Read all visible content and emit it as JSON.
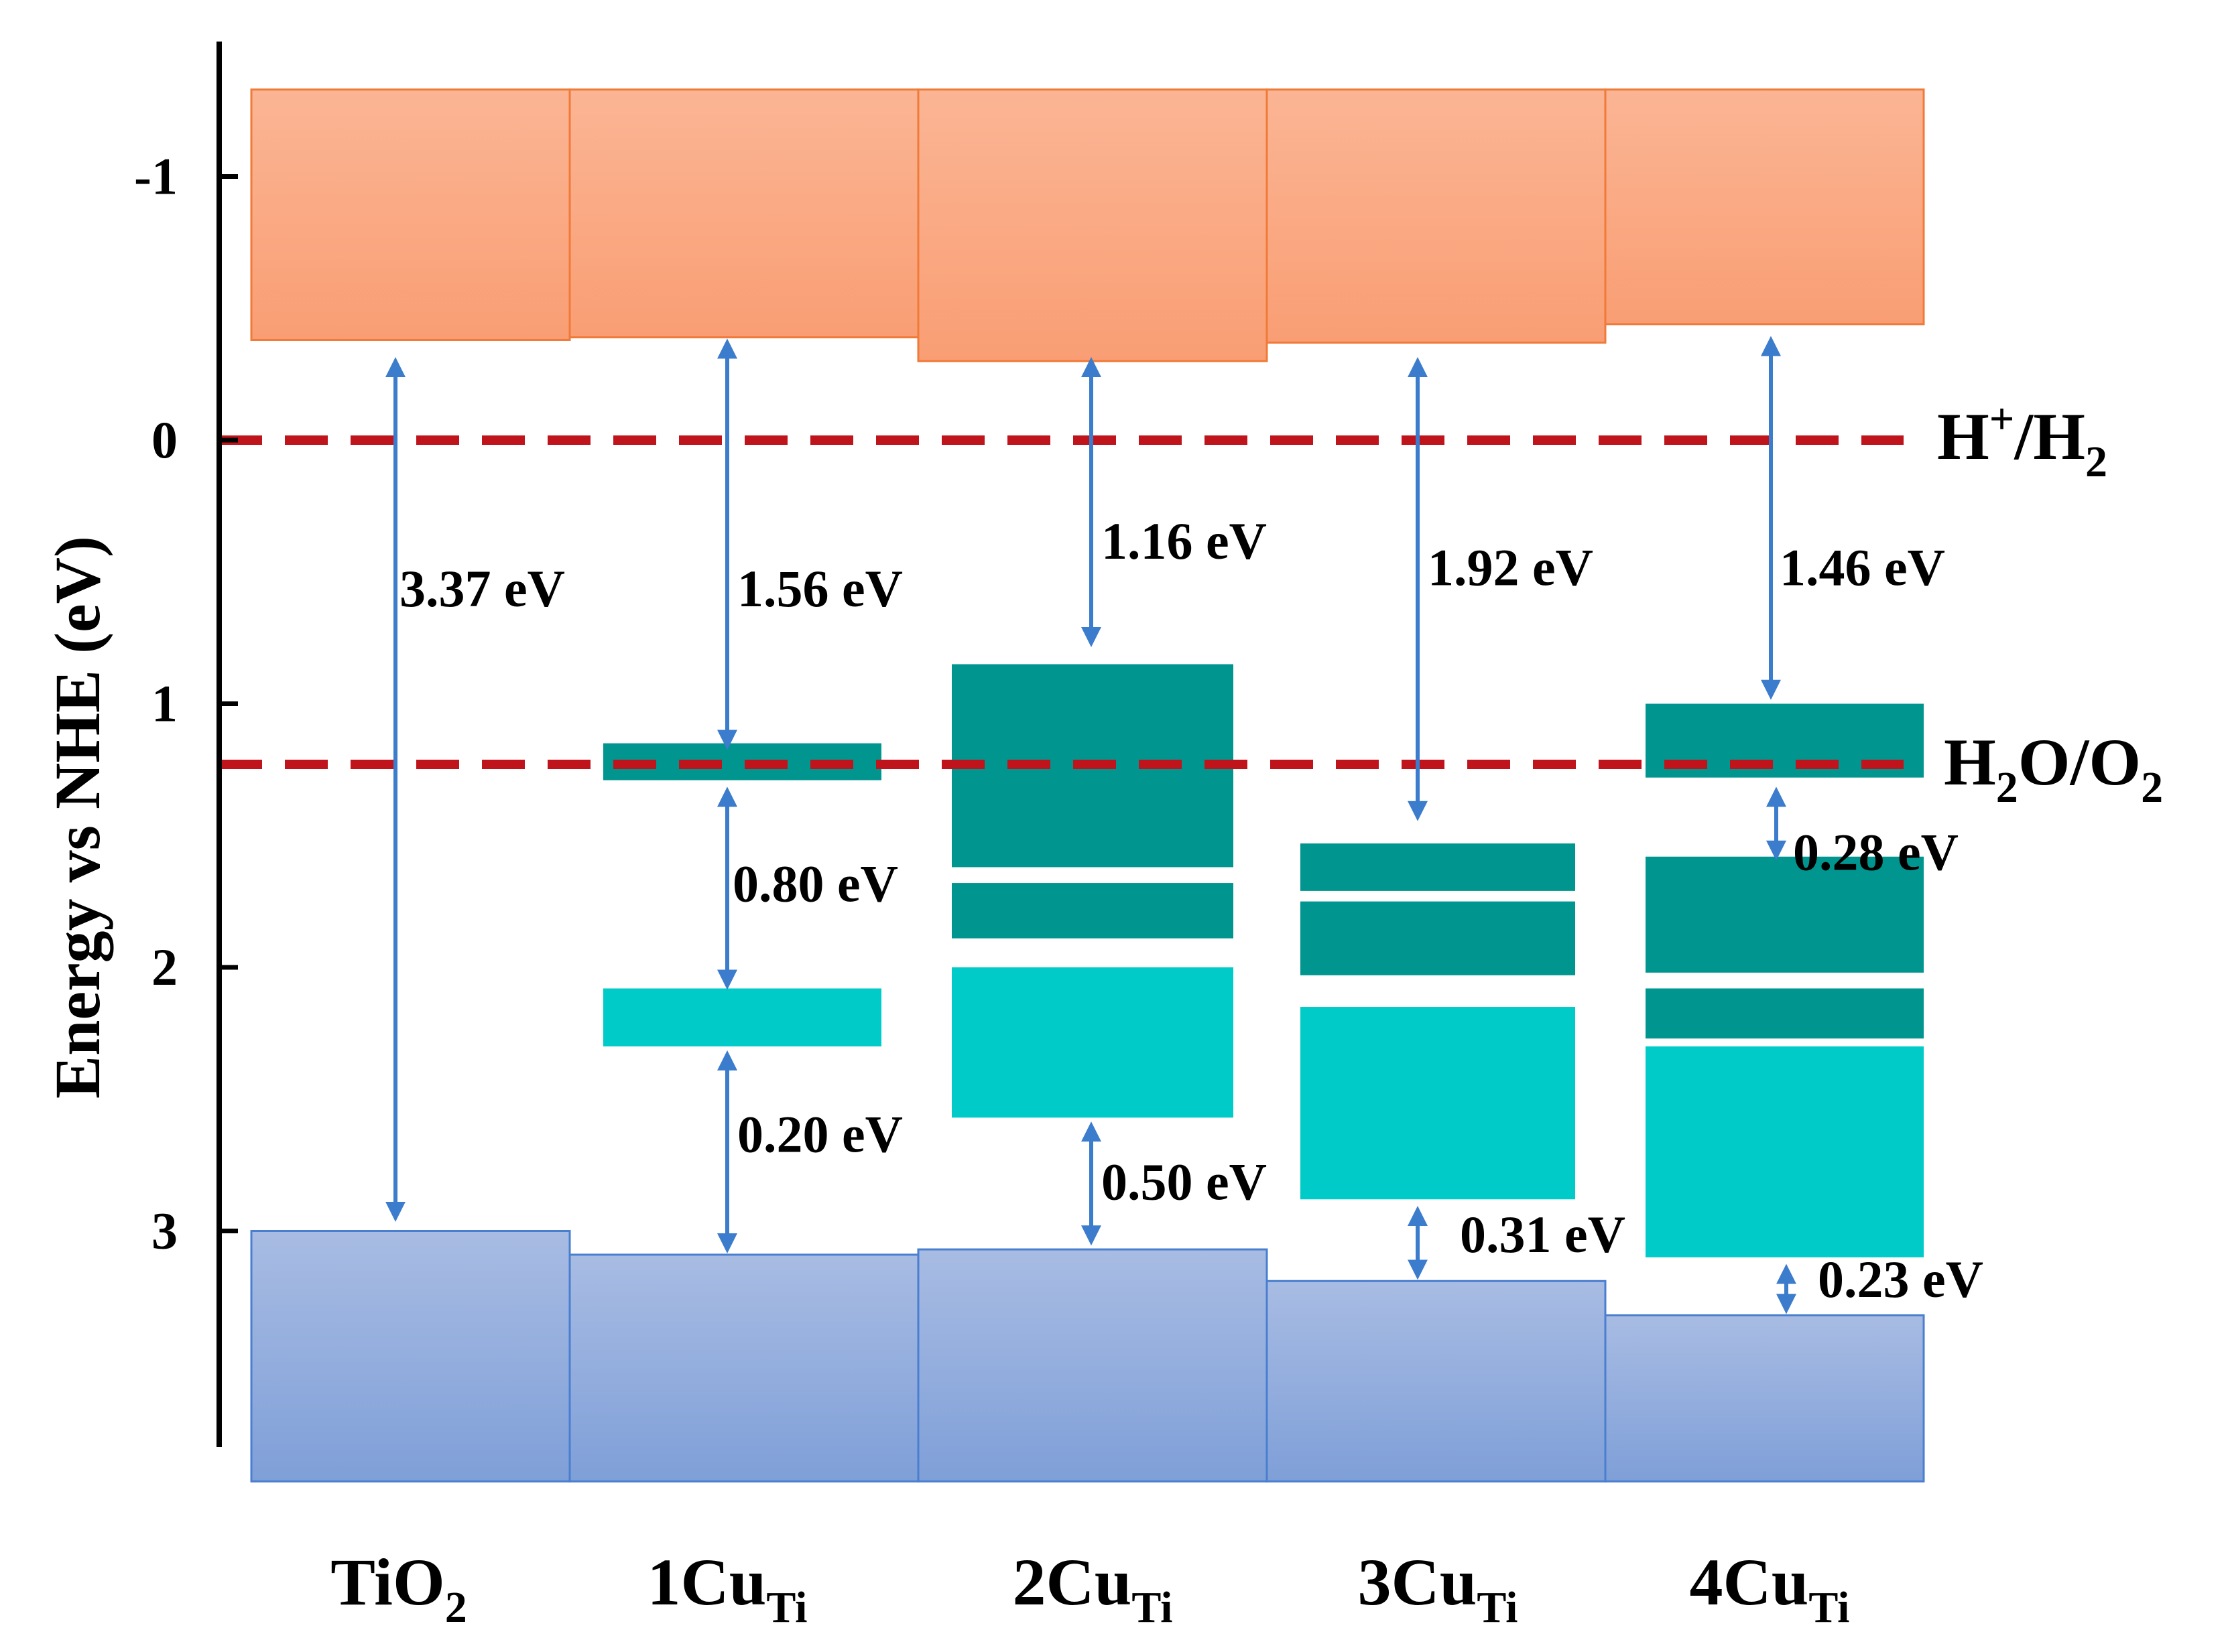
{
  "chart_data": {
    "type": "band-diagram",
    "ylabel": "Energy vs NHE (eV)",
    "ylim": [
      -1.5,
      3.95
    ],
    "yticks": [
      -1,
      0,
      1,
      2,
      3
    ],
    "ytick_labels": [
      "-1",
      "0",
      "1",
      "2",
      "3"
    ],
    "reference_lines": [
      {
        "name": "H+/H2",
        "label_main": "H",
        "label_parts": [
          "H",
          "+",
          "/H",
          "2"
        ],
        "energy": 0.0
      },
      {
        "name": "H2O/O2",
        "label_parts": [
          "H",
          "2",
          "O/O",
          "2"
        ],
        "energy": 1.23
      }
    ],
    "categories": [
      {
        "name": "TiO2",
        "label_main": "TiO",
        "label_sub": "2",
        "cb_bottom": -0.38,
        "vb_top": 3.0,
        "states": [],
        "gaps": [
          {
            "from": -0.3,
            "to": 2.95,
            "label": "3.37 eV"
          }
        ]
      },
      {
        "name": "1CuTi",
        "label_main": "1Cu",
        "label_sub": "Ti",
        "cb_bottom": -0.39,
        "vb_top": 3.09,
        "states": [
          {
            "top": 1.15,
            "bottom": 1.29,
            "kind": "occupied-upper"
          },
          {
            "top": 2.08,
            "bottom": 2.3,
            "kind": "occupied-lower"
          }
        ],
        "gaps": [
          {
            "from": -0.37,
            "to": 1.16,
            "label": "1.56 eV"
          },
          {
            "from": 1.33,
            "to": 2.07,
            "label": "0.80 eV"
          },
          {
            "from": 2.33,
            "to": 3.07,
            "label": "0.20 eV"
          }
        ]
      },
      {
        "name": "2CuTi",
        "label_main": "2Cu",
        "label_sub": "Ti",
        "cb_bottom": -0.3,
        "vb_top": 3.07,
        "states": [
          {
            "top": 0.85,
            "bottom": 1.62,
            "kind": "occupied-upper"
          },
          {
            "top": 1.68,
            "bottom": 1.89,
            "kind": "occupied-upper"
          },
          {
            "top": 2.0,
            "bottom": 2.57,
            "kind": "occupied-lower"
          }
        ],
        "gaps": [
          {
            "from": -0.3,
            "to": 0.77,
            "label": "1.16 eV"
          },
          {
            "from": 2.6,
            "to": 3.04,
            "label": "0.50 eV"
          }
        ]
      },
      {
        "name": "3CuTi",
        "label_main": "3Cu",
        "label_sub": "Ti",
        "cb_bottom": -0.37,
        "vb_top": 3.19,
        "states": [
          {
            "top": 1.53,
            "bottom": 1.71,
            "kind": "occupied-upper"
          },
          {
            "top": 1.75,
            "bottom": 2.03,
            "kind": "occupied-upper"
          },
          {
            "top": 2.15,
            "bottom": 2.88,
            "kind": "occupied-lower"
          }
        ],
        "gaps": [
          {
            "from": -0.3,
            "to": 1.43,
            "label": "1.92 eV"
          },
          {
            "from": 2.92,
            "to": 3.17,
            "label": "0.31 eV"
          }
        ]
      },
      {
        "name": "4CuTi",
        "label_main": "4Cu",
        "label_sub": "Ti",
        "cb_bottom": -0.44,
        "vb_top": 3.32,
        "states": [
          {
            "top": 1.0,
            "bottom": 1.28,
            "kind": "occupied-upper"
          },
          {
            "top": 1.58,
            "bottom": 2.02,
            "kind": "occupied-upper"
          },
          {
            "top": 2.08,
            "bottom": 2.27,
            "kind": "occupied-upper"
          },
          {
            "top": 2.3,
            "bottom": 3.1,
            "kind": "occupied-lower"
          }
        ],
        "gaps": [
          {
            "from": -0.38,
            "to": 0.97,
            "label": "1.46 eV"
          },
          {
            "from": 1.33,
            "to": 1.58,
            "label": "0.28 eV"
          },
          {
            "from": 3.14,
            "to": 3.3,
            "label": "0.23 eV"
          }
        ]
      }
    ],
    "cb_top": -1.33,
    "vb_bottom": 3.95,
    "colors": {
      "cb_top": "#fbb594",
      "cb_bottom": "#f99e74",
      "cb_edge": "#f07a38",
      "vb_top": "#a8bce3",
      "vb_bottom": "#7f9fd8",
      "vb_edge": "#4a7fcf",
      "state_upper": "#00958f",
      "state_lower": "#00cbc9",
      "arrow": "#3b7ccc",
      "refline": "#c0141d",
      "axis": "#000000"
    }
  }
}
